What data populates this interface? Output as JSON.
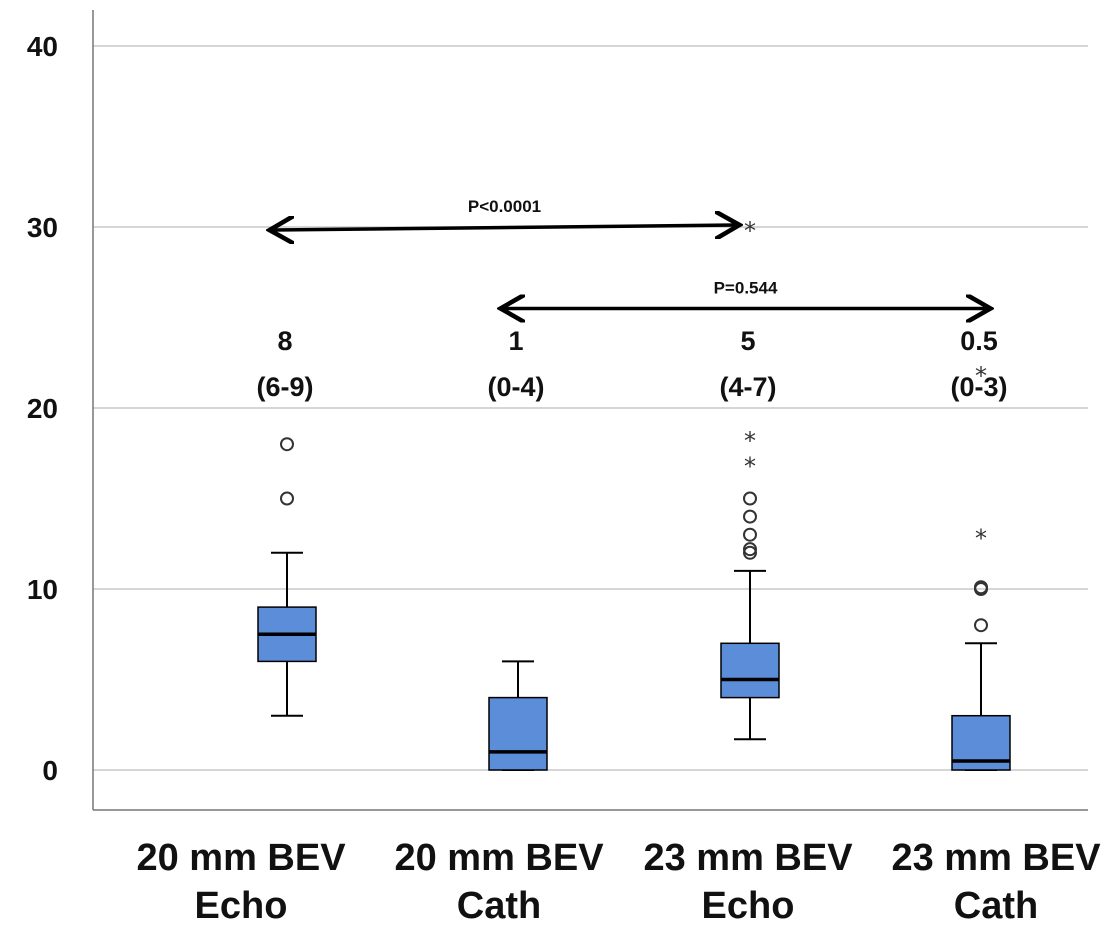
{
  "chart_data": {
    "type": "box",
    "title": "",
    "xlabel": "",
    "ylabel": "",
    "ylim": [
      0,
      40
    ],
    "yticks": [
      "0",
      "10",
      "20",
      "30",
      "40"
    ],
    "grid": true,
    "box_color": "#5b8dd9",
    "categories": [
      {
        "line1": "20 mm BEV",
        "line2": "Echo"
      },
      {
        "line1": "20 mm BEV",
        "line2": "Cath"
      },
      {
        "line1": "23 mm BEV",
        "line2": "Echo"
      },
      {
        "line1": "23 mm BEV",
        "line2": "Cath"
      }
    ],
    "boxes": [
      {
        "whisker_low": 3,
        "q1": 6,
        "median": 7.5,
        "q3": 9,
        "whisker_high": 12,
        "outliers": [
          15,
          18
        ],
        "extremes": []
      },
      {
        "whisker_low": 0,
        "q1": 0,
        "median": 1,
        "q3": 4,
        "whisker_high": 6,
        "outliers": [],
        "extremes": []
      },
      {
        "whisker_low": 1.7,
        "q1": 4,
        "median": 5,
        "q3": 7,
        "whisker_high": 11,
        "outliers": [
          12,
          12.2,
          13,
          14,
          15
        ],
        "extremes": [
          17,
          18.4,
          30
        ]
      },
      {
        "whisker_low": 0,
        "q1": 0,
        "median": 0.5,
        "q3": 3,
        "whisker_high": 7,
        "outliers": [
          8,
          10,
          10.1
        ],
        "extremes": [
          13,
          22
        ]
      }
    ],
    "annotations": [
      {
        "value": "8",
        "range": "(6-9)"
      },
      {
        "value": "1",
        "range": "(0-4)"
      },
      {
        "value": "5",
        "range": "(4-7)"
      },
      {
        "value": "0.5",
        "range": "(0-3)"
      }
    ],
    "comparisons": [
      {
        "label": "P<0.0001",
        "from": 0,
        "to": 2,
        "y": 30
      },
      {
        "label": "P=0.544",
        "from": 1,
        "to": 3,
        "y": 25.5
      }
    ]
  }
}
